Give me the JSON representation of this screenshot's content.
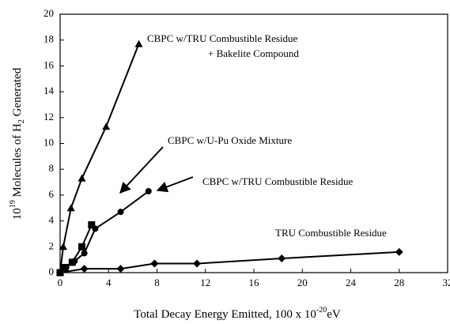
{
  "chart_data": {
    "type": "line",
    "x_label": {
      "text": "Total Decay Energy Emitted, 100 x 10",
      "sup": "-20",
      "unit": "eV"
    },
    "y_label": {
      "pre": "10",
      "sup": "19",
      "mid": " Molecules of H",
      "sub": "2",
      "post": " Generated"
    },
    "annotations": [
      "CBPC w/TRU Combustible Residue",
      "+ Bakelite Compound",
      "CBPC w/U-Pu Oxide Mixture",
      "CBPC w/TRU Combustible Residue",
      "TRU Combustible Residue"
    ],
    "xlim": [
      0,
      32
    ],
    "xticks": [
      0,
      4,
      8,
      12,
      16,
      20,
      24,
      28,
      32
    ],
    "ylim": [
      0,
      20
    ],
    "yticks": [
      0,
      2,
      4,
      6,
      8,
      10,
      12,
      14,
      16,
      18,
      20
    ],
    "series": [
      {
        "marker": "triangle",
        "color": "#000000",
        "x": [
          0,
          0.26,
          0.9,
          1.8,
          3.8,
          6.5
        ],
        "values": [
          0,
          2.0,
          5.0,
          7.3,
          11.3,
          17.7
        ]
      },
      {
        "marker": "square",
        "color": "#000000",
        "x": [
          0,
          0.4,
          1.0,
          1.8,
          2.6
        ],
        "values": [
          0,
          0.4,
          0.8,
          2.0,
          3.7
        ]
      },
      {
        "marker": "circle",
        "color": "#000000",
        "x": [
          0,
          0.5,
          1.2,
          2.0,
          2.9,
          5.0,
          7.3
        ],
        "values": [
          0,
          0.4,
          0.9,
          1.5,
          3.4,
          4.7,
          6.3
        ]
      },
      {
        "marker": "diamond",
        "color": "#000000",
        "x": [
          0,
          2.0,
          5.0,
          7.8,
          11.3,
          18.3,
          28.0
        ],
        "values": [
          0,
          0.3,
          0.3,
          0.7,
          0.7,
          1.1,
          1.6
        ]
      }
    ]
  }
}
